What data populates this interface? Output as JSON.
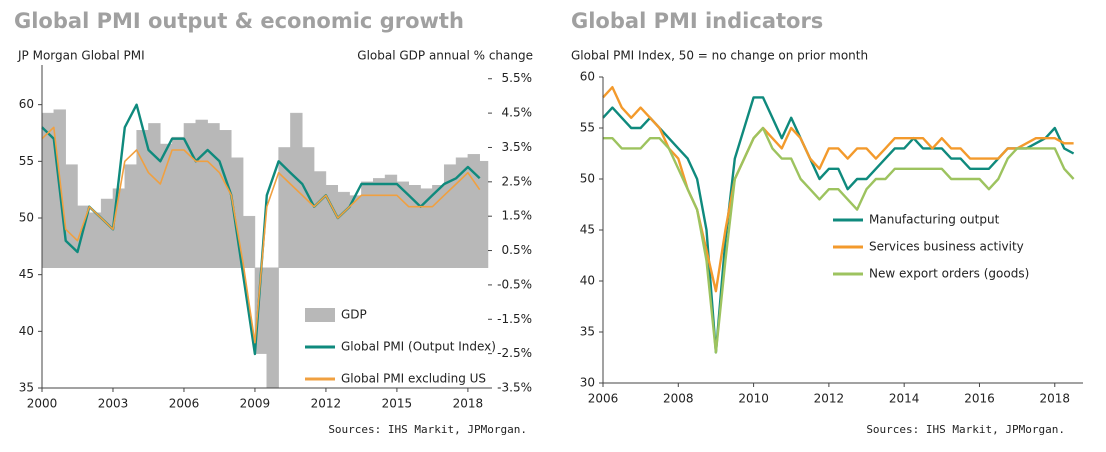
{
  "chart_data": [
    {
      "type": "line",
      "title": "Global PMI output & economic growth",
      "y_label": "JP Morgan Global PMI",
      "y2_label": "Global GDP annual % change",
      "source": "Sources: IHS Markit, JPMorgan.",
      "legend": "lower right",
      "xlim": [
        2000,
        2018.85
      ],
      "xticks": [
        2000,
        2003,
        2006,
        2009,
        2012,
        2015,
        2018
      ],
      "ylim": [
        35,
        63.5
      ],
      "yticks": [
        35,
        40,
        45,
        50,
        55,
        60
      ],
      "y2lim": [
        -3.5,
        5.9
      ],
      "y2ticks": [
        {
          "value": 5.5,
          "label": "5.5%"
        },
        {
          "value": 4.5,
          "label": "4.5%"
        },
        {
          "value": 3.5,
          "label": "3.5%"
        },
        {
          "value": 2.5,
          "label": "2.5%"
        },
        {
          "value": 1.5,
          "label": "1.5%"
        },
        {
          "value": 0.5,
          "label": "0.5%"
        },
        {
          "value": -0.5,
          "label": "-0.5%"
        },
        {
          "value": -1.5,
          "label": "-1.5%"
        },
        {
          "value": -2.5,
          "label": "-2.5%"
        },
        {
          "value": -3.5,
          "label": "-3.5%"
        }
      ],
      "x": [
        2000,
        2000.5,
        2001,
        2001.5,
        2002,
        2002.5,
        2003,
        2003.5,
        2004,
        2004.5,
        2005,
        2005.5,
        2006,
        2006.5,
        2007,
        2007.5,
        2008,
        2008.5,
        2009,
        2009.5,
        2010,
        2010.5,
        2011,
        2011.5,
        2012,
        2012.5,
        2013,
        2013.5,
        2014,
        2014.5,
        2015,
        2015.5,
        2016,
        2016.5,
        2017,
        2017.5,
        2018,
        2018.5
      ],
      "series": [
        {
          "name": "GDP",
          "type": "bar",
          "axis": "y2",
          "color": "#b8b8b8",
          "values": [
            4.5,
            4.6,
            3.0,
            1.8,
            1.6,
            2.0,
            2.3,
            3.0,
            4.0,
            4.2,
            3.6,
            3.8,
            4.2,
            4.3,
            4.2,
            4.0,
            3.2,
            1.5,
            -2.5,
            -3.5,
            3.5,
            4.5,
            3.5,
            2.8,
            2.4,
            2.2,
            2.1,
            2.5,
            2.6,
            2.7,
            2.5,
            2.4,
            2.3,
            2.4,
            3.0,
            3.2,
            3.3,
            3.1
          ]
        },
        {
          "name": "Global PMI (Output Index)",
          "color": "#0f8a7d",
          "values": [
            58,
            57,
            48,
            47,
            51,
            50,
            49,
            58,
            60,
            56,
            55,
            57,
            57,
            55,
            56,
            55,
            52,
            45,
            38,
            52,
            55,
            54,
            53,
            51,
            52,
            50,
            51,
            53,
            53,
            53,
            53,
            52,
            51,
            52,
            53,
            53.5,
            54.5,
            53.5
          ]
        },
        {
          "name": "Global PMI excluding US",
          "color": "#f0a040",
          "values": [
            57,
            58,
            49,
            48,
            51,
            50,
            49,
            55,
            56,
            54,
            53,
            56,
            56,
            55,
            55,
            54,
            52,
            46,
            39,
            51,
            54,
            53,
            52,
            51,
            52,
            50,
            51,
            52,
            52,
            52,
            52,
            51,
            51,
            51,
            52,
            53,
            54,
            52.5
          ]
        }
      ]
    },
    {
      "type": "line",
      "title": "Global PMI indicators",
      "subtitle": "Global PMI Index, 50 = no change on prior month",
      "source": "Sources: IHS Markit, JPMorgan.",
      "legend": "center right",
      "xlim": [
        2006,
        2018.75
      ],
      "xticks": [
        2006,
        2008,
        2010,
        2012,
        2014,
        2016,
        2018
      ],
      "ylim": [
        30,
        60
      ],
      "yticks": [
        30,
        35,
        40,
        45,
        50,
        55,
        60
      ],
      "x": [
        2006,
        2006.25,
        2006.5,
        2006.75,
        2007,
        2007.25,
        2007.5,
        2007.75,
        2008,
        2008.25,
        2008.5,
        2008.75,
        2009,
        2009.25,
        2009.5,
        2009.75,
        2010,
        2010.25,
        2010.5,
        2010.75,
        2011,
        2011.25,
        2011.5,
        2011.75,
        2012,
        2012.25,
        2012.5,
        2012.75,
        2013,
        2013.25,
        2013.5,
        2013.75,
        2014,
        2014.25,
        2014.5,
        2014.75,
        2015,
        2015.25,
        2015.5,
        2015.75,
        2016,
        2016.25,
        2016.5,
        2016.75,
        2017,
        2017.25,
        2017.5,
        2017.75,
        2018,
        2018.25,
        2018.5
      ],
      "series": [
        {
          "name": "Manufacturing output",
          "color": "#0f8a7d",
          "values": [
            56,
            57,
            56,
            55,
            55,
            56,
            55,
            54,
            53,
            52,
            50,
            45,
            33,
            44,
            52,
            55,
            58,
            58,
            56,
            54,
            56,
            54,
            52,
            50,
            51,
            51,
            49,
            50,
            50,
            51,
            52,
            53,
            53,
            54,
            53,
            53,
            53,
            52,
            52,
            51,
            51,
            51,
            52,
            53,
            53,
            53,
            53.5,
            54,
            55,
            53,
            52.5
          ]
        },
        {
          "name": "Services business activity",
          "color": "#f39a2c",
          "values": [
            58,
            59,
            57,
            56,
            57,
            56,
            55,
            53,
            52,
            49,
            47,
            43,
            39,
            45,
            50,
            52,
            54,
            55,
            54,
            53,
            55,
            54,
            52,
            51,
            53,
            53,
            52,
            53,
            53,
            52,
            53,
            54,
            54,
            54,
            54,
            53,
            54,
            53,
            53,
            52,
            52,
            52,
            52,
            53,
            53,
            53.5,
            54,
            54,
            54,
            53.5,
            53.5
          ]
        },
        {
          "name": "New export orders (goods)",
          "color": "#9dc35f",
          "values": [
            54,
            54,
            53,
            53,
            53,
            54,
            54,
            53,
            51,
            49,
            47,
            42,
            33,
            42,
            50,
            52,
            54,
            55,
            53,
            52,
            52,
            50,
            49,
            48,
            49,
            49,
            48,
            47,
            49,
            50,
            50,
            51,
            51,
            51,
            51,
            51,
            51,
            50,
            50,
            50,
            50,
            49,
            50,
            52,
            53,
            53,
            53,
            53,
            53,
            51,
            50
          ]
        }
      ]
    }
  ]
}
